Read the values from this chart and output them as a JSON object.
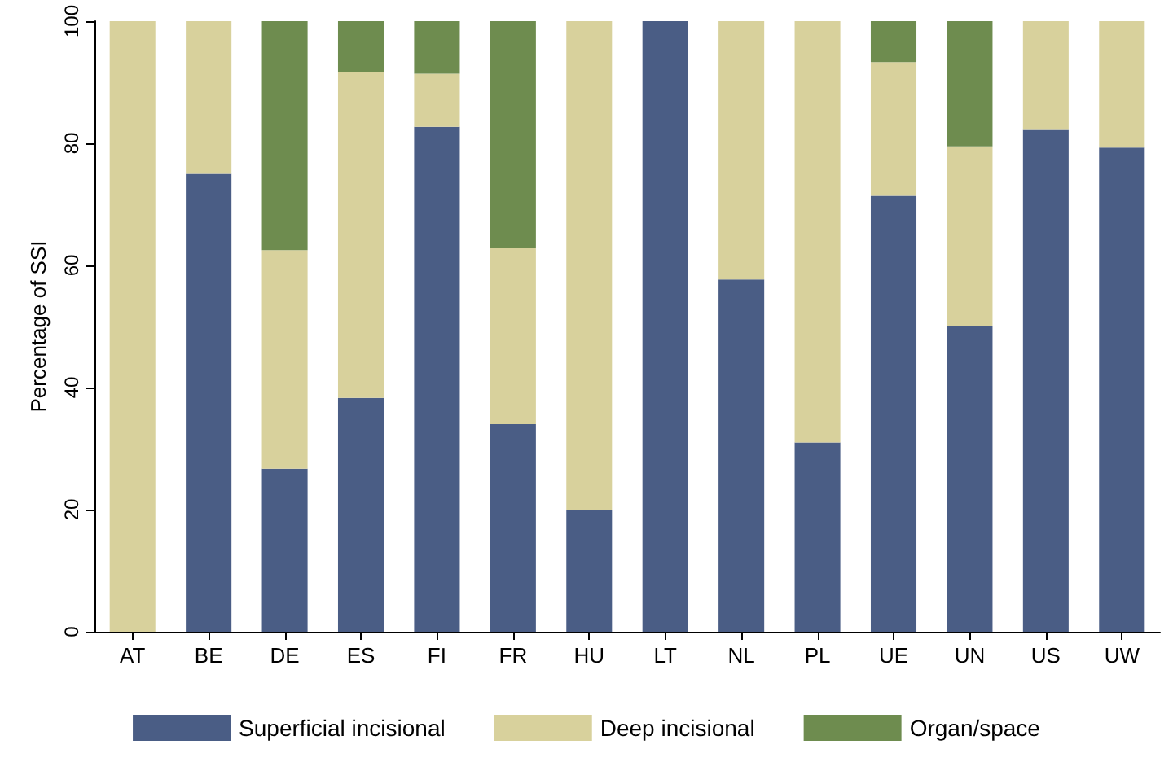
{
  "chart_data": {
    "type": "bar",
    "stacked": true,
    "ylabel": "Percentage of SSI",
    "categories": [
      "AT",
      "BE",
      "DE",
      "ES",
      "FI",
      "FR",
      "HU",
      "LT",
      "NL",
      "PL",
      "UE",
      "UN",
      "US",
      "UW"
    ],
    "series": [
      {
        "name": "Superficial incisional",
        "color": "#4a5d85",
        "values": [
          0,
          75,
          26.7,
          38.3,
          82.7,
          34,
          20,
          100,
          57.7,
          31,
          71.4,
          50,
          82.2,
          79.3
        ]
      },
      {
        "name": "Deep incisional",
        "color": "#d8d19c",
        "values": [
          100,
          25,
          35.8,
          53.3,
          8.7,
          28.8,
          80,
          0,
          42.3,
          69,
          21.9,
          29.5,
          17.8,
          20.7
        ]
      },
      {
        "name": "Organ/space",
        "color": "#6e8c4f",
        "values": [
          0,
          0,
          37.5,
          8.4,
          8.6,
          37.2,
          0,
          0,
          0,
          0,
          6.7,
          20.5,
          0,
          0
        ]
      }
    ],
    "ylim": [
      0,
      100
    ],
    "yticks": [
      0,
      20,
      40,
      60,
      80,
      100
    ],
    "grid": false,
    "legend": "bottom"
  }
}
